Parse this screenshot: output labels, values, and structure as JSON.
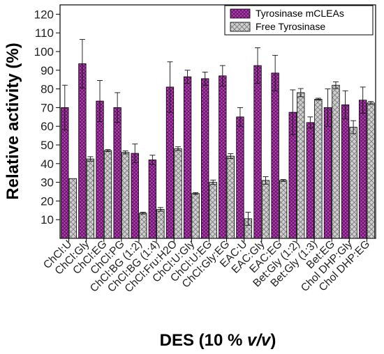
{
  "chart_data": {
    "type": "bar",
    "xlabel_prefix": "DES (10 % ",
    "xlabel_italic": "v/v",
    "xlabel_suffix": ")",
    "ylabel": "Relative activity (%)",
    "ylim": [
      0,
      125
    ],
    "yticks": [
      10,
      20,
      30,
      40,
      50,
      60,
      70,
      80,
      90,
      100,
      110,
      120
    ],
    "legend_position": "top-right",
    "grid": false,
    "categories": [
      "ChCl:U",
      "ChCl:Gly",
      "ChCl:EG",
      "ChCl:PG",
      "ChCl:BG (1:2)",
      "ChCl:BG (1:4)",
      "ChCl:Fru:H2O",
      "ChCl:U:Gly",
      "ChCl:U:EG",
      "ChCl:Gly:EG",
      "EAC:U",
      "EAC:Gly",
      "EAC:EG",
      "Bet:Gly (1:2)",
      "Bet:Gly (1:3)",
      "Bet:EG",
      "Chol DHP:Gly",
      "Chol DHP:EG"
    ],
    "series": [
      {
        "name": "Tyrosinase mCLEAs",
        "color": "#b03fb0",
        "values": [
          70,
          93.5,
          73.5,
          70,
          45.5,
          42,
          81,
          86.5,
          85.5,
          87,
          65,
          92.5,
          88.5,
          67.5,
          62,
          70,
          71.5,
          74
        ],
        "errors": [
          12,
          13,
          11,
          8,
          5,
          2.5,
          13.5,
          3.5,
          3.5,
          5.5,
          5,
          9.5,
          9.5,
          12,
          3,
          10,
          7.5,
          7
        ]
      },
      {
        "name": "Free Tyrosinase",
        "color": "#c8c8c8",
        "values": [
          32,
          42.5,
          47,
          46,
          13.5,
          15.5,
          48,
          24,
          30,
          44,
          10.5,
          31,
          31,
          78,
          74.5,
          82,
          59.5,
          72.5
        ],
        "errors": [
          0,
          1.2,
          0.5,
          0.8,
          0.5,
          1,
          1,
          0.5,
          1.2,
          1.3,
          3.5,
          2,
          0.5,
          2.2,
          0.5,
          1.8,
          3.5,
          0.8
        ]
      }
    ]
  }
}
